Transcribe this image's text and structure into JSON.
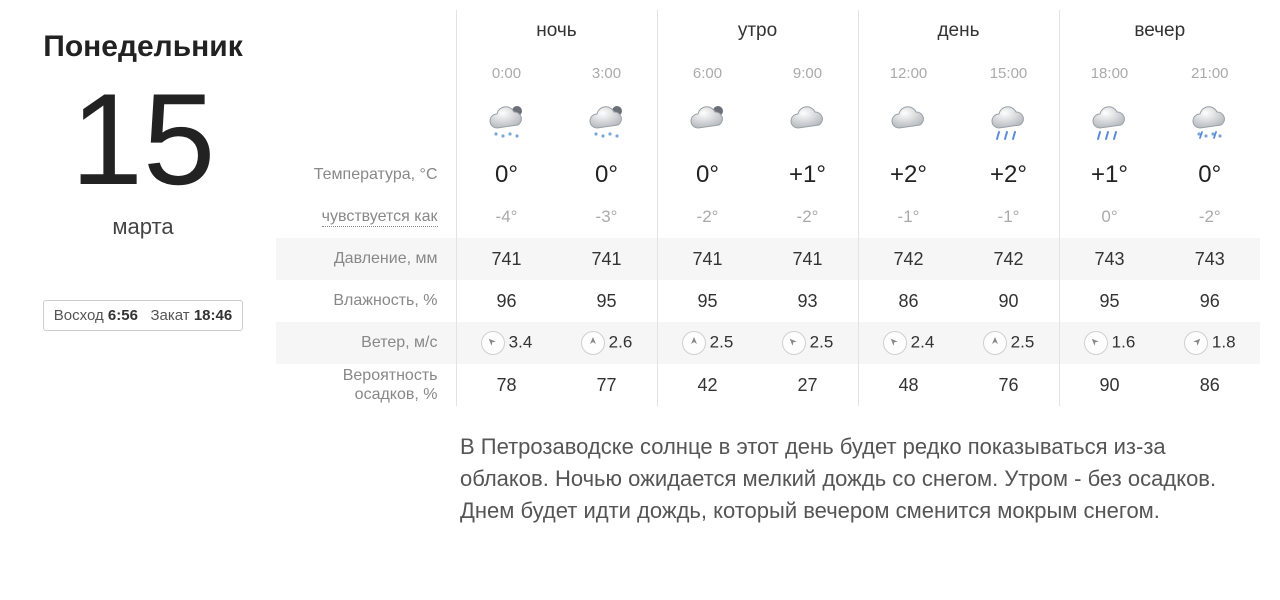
{
  "date": {
    "weekday": "Понедельник",
    "day": "15",
    "month": "марта"
  },
  "sun": {
    "rise_label": "Восход",
    "rise": "6:56",
    "set_label": "Закат",
    "set": "18:46"
  },
  "parts": [
    "ночь",
    "утро",
    "день",
    "вечер"
  ],
  "hours": [
    "0:00",
    "3:00",
    "6:00",
    "9:00",
    "12:00",
    "15:00",
    "18:00",
    "21:00"
  ],
  "row_labels": {
    "temp": "Температура, °C",
    "feels": "чувствуется как",
    "pressure": "Давление, мм",
    "humidity": "Влажность, %",
    "wind": "Ветер, м/с",
    "precip": "Вероятность осадков, %"
  },
  "icons": [
    "snow-night",
    "snow-night",
    "cloudy-night",
    "cloudy",
    "cloudy",
    "rain",
    "rain",
    "snow-rain"
  ],
  "temp": [
    "0°",
    "0°",
    "0°",
    "+1°",
    "+2°",
    "+2°",
    "+1°",
    "0°"
  ],
  "feels": [
    "-4°",
    "-3°",
    "-2°",
    "-2°",
    "-1°",
    "-1°",
    "0°",
    "-2°"
  ],
  "pressure": [
    "741",
    "741",
    "741",
    "741",
    "742",
    "742",
    "743",
    "743"
  ],
  "humidity": [
    "96",
    "95",
    "95",
    "93",
    "86",
    "90",
    "95",
    "96"
  ],
  "wind_dir_deg": [
    315,
    0,
    0,
    315,
    315,
    0,
    315,
    45
  ],
  "wind_speed": [
    "3.4",
    "2.6",
    "2.5",
    "2.5",
    "2.4",
    "2.5",
    "1.6",
    "1.8"
  ],
  "precip": [
    "78",
    "77",
    "42",
    "27",
    "48",
    "76",
    "90",
    "86"
  ],
  "description": "В Петрозаводске солнце в этот день будет редко показываться из-за облаков. Ночью ожидается мелкий дождь со снегом. Утром - без осадков. Днем будет идти дождь, который вечером сменится мокрым снегом.",
  "colors": {
    "band_bg": "#f6f6f6",
    "border": "#e3e3e3",
    "text_muted": "#aaaaaa"
  }
}
